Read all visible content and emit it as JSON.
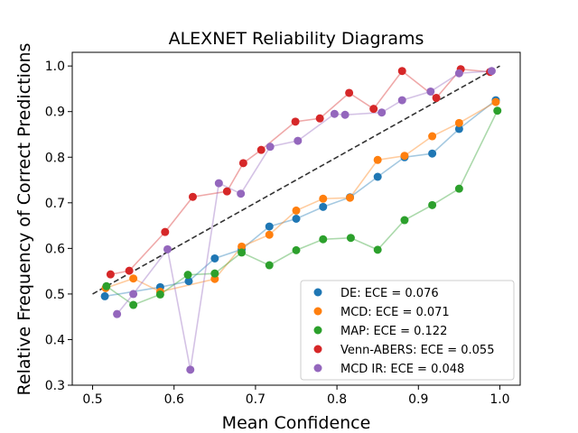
{
  "chart_data": {
    "type": "line",
    "title": "ALEXNET Reliability Diagrams",
    "xlabel": "Mean Confidence",
    "ylabel": "Relative Frequency of Correct Predictions",
    "xlim": [
      0.475,
      1.025
    ],
    "ylim": [
      0.3,
      1.03
    ],
    "xticks": [
      0.5,
      0.6,
      0.7,
      0.8,
      0.9,
      1.0
    ],
    "xtick_labels": [
      "0.5",
      "0.6",
      "0.7",
      "0.8",
      "0.9",
      "1.0"
    ],
    "yticks": [
      0.3,
      0.4,
      0.5,
      0.6,
      0.7,
      0.8,
      0.9,
      1.0
    ],
    "ytick_labels": [
      "0.3",
      "0.4",
      "0.5",
      "0.6",
      "0.7",
      "0.8",
      "0.9",
      "1.0"
    ],
    "grid": false,
    "legend_position": "lower-right",
    "reference_line": {
      "x": [
        0.5,
        1.0
      ],
      "y": [
        0.5,
        1.0
      ],
      "style": "dashed",
      "color": "#333333"
    },
    "series": [
      {
        "name": "DE",
        "label": "DE: ECE = 0.076",
        "color": "#1f77b4",
        "x": [
          0.515,
          0.583,
          0.618,
          0.65,
          0.683,
          0.717,
          0.75,
          0.783,
          0.816,
          0.85,
          0.883,
          0.917,
          0.95,
          0.995
        ],
        "y": [
          0.495,
          0.515,
          0.528,
          0.578,
          0.598,
          0.648,
          0.665,
          0.691,
          0.712,
          0.757,
          0.8,
          0.808,
          0.862,
          0.925
        ]
      },
      {
        "name": "MCD",
        "label": "MCD: ECE =  0.071",
        "color": "#ff7f0e",
        "x": [
          0.516,
          0.55,
          0.583,
          0.65,
          0.683,
          0.717,
          0.75,
          0.783,
          0.816,
          0.85,
          0.883,
          0.917,
          0.95,
          0.995
        ],
        "y": [
          0.513,
          0.534,
          0.505,
          0.533,
          0.604,
          0.63,
          0.683,
          0.709,
          0.711,
          0.794,
          0.803,
          0.846,
          0.875,
          0.921
        ]
      },
      {
        "name": "MAP",
        "label": "MAP: ECE =  0.122",
        "color": "#2ca02c",
        "x": [
          0.517,
          0.55,
          0.583,
          0.617,
          0.65,
          0.683,
          0.717,
          0.75,
          0.783,
          0.817,
          0.85,
          0.883,
          0.917,
          0.95,
          0.997
        ],
        "y": [
          0.517,
          0.476,
          0.499,
          0.542,
          0.545,
          0.591,
          0.563,
          0.596,
          0.62,
          0.623,
          0.597,
          0.662,
          0.695,
          0.731,
          0.902
        ]
      },
      {
        "name": "Venn-ABERS",
        "label": "Venn-ABERS: ECE =  0.055",
        "color": "#d62728",
        "x": [
          0.522,
          0.545,
          0.589,
          0.623,
          0.665,
          0.685,
          0.707,
          0.749,
          0.779,
          0.815,
          0.845,
          0.88,
          0.922,
          0.952,
          0.988
        ],
        "y": [
          0.543,
          0.551,
          0.636,
          0.713,
          0.725,
          0.787,
          0.816,
          0.878,
          0.885,
          0.941,
          0.906,
          0.989,
          0.93,
          0.993,
          0.987
        ]
      },
      {
        "name": "MCD IR",
        "label": "MCD IR: ECE = 0.048",
        "color": "#9467bd",
        "x": [
          0.53,
          0.55,
          0.592,
          0.62,
          0.655,
          0.682,
          0.718,
          0.752,
          0.797,
          0.81,
          0.855,
          0.88,
          0.915,
          0.95,
          0.99
        ],
        "y": [
          0.456,
          0.5,
          0.598,
          0.334,
          0.743,
          0.72,
          0.823,
          0.836,
          0.895,
          0.893,
          0.898,
          0.925,
          0.944,
          0.984,
          0.989
        ]
      }
    ]
  }
}
